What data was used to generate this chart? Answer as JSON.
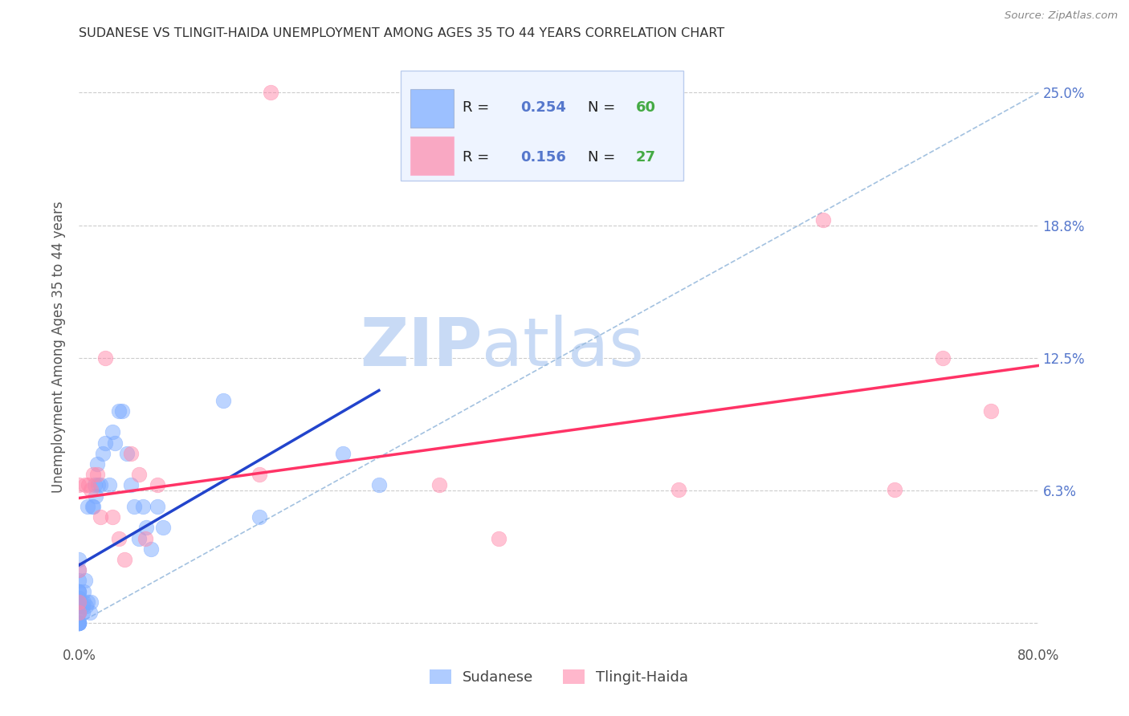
{
  "title": "SUDANESE VS TLINGIT-HAIDA UNEMPLOYMENT AMONG AGES 35 TO 44 YEARS CORRELATION CHART",
  "source": "Source: ZipAtlas.com",
  "ylabel": "Unemployment Among Ages 35 to 44 years",
  "xlim": [
    0.0,
    0.8
  ],
  "ylim": [
    -0.01,
    0.27
  ],
  "sudanese_R": 0.254,
  "sudanese_N": 60,
  "tlingit_R": 0.156,
  "tlingit_N": 27,
  "sudanese_color": "#7aaaff",
  "tlingit_color": "#ff88aa",
  "sudanese_trend_color": "#2244cc",
  "tlingit_trend_color": "#ff3366",
  "diagonal_color": "#99bbdd",
  "grid_color": "#cccccc",
  "background": "#ffffff",
  "title_color": "#333333",
  "axis_label_color": "#555555",
  "right_tick_color": "#5577cc",
  "watermark_color": "#ddeeff",
  "legend_box_color": "#eef4ff",
  "legend_edge_color": "#bbccee",
  "ytick_vals": [
    0.0,
    0.0625,
    0.125,
    0.1875,
    0.25
  ],
  "ytick_labels": [
    "",
    "6.3%",
    "12.5%",
    "18.8%",
    "25.0%"
  ],
  "sudanese_x": [
    0.0,
    0.0,
    0.0,
    0.0,
    0.0,
    0.0,
    0.0,
    0.0,
    0.0,
    0.0,
    0.0,
    0.0,
    0.0,
    0.0,
    0.0,
    0.0,
    0.0,
    0.0,
    0.0,
    0.0,
    0.0,
    0.0,
    0.0,
    0.003,
    0.003,
    0.004,
    0.004,
    0.005,
    0.006,
    0.007,
    0.007,
    0.009,
    0.01,
    0.011,
    0.012,
    0.013,
    0.014,
    0.015,
    0.016,
    0.018,
    0.02,
    0.022,
    0.025,
    0.028,
    0.03,
    0.033,
    0.036,
    0.04,
    0.043,
    0.046,
    0.05,
    0.053,
    0.056,
    0.06,
    0.065,
    0.07,
    0.12,
    0.15,
    0.22,
    0.25
  ],
  "sudanese_y": [
    0.0,
    0.0,
    0.0,
    0.0,
    0.0,
    0.0,
    0.0,
    0.0,
    0.005,
    0.005,
    0.005,
    0.008,
    0.008,
    0.01,
    0.01,
    0.012,
    0.012,
    0.015,
    0.015,
    0.015,
    0.02,
    0.025,
    0.03,
    0.005,
    0.008,
    0.01,
    0.015,
    0.02,
    0.008,
    0.01,
    0.055,
    0.005,
    0.01,
    0.055,
    0.055,
    0.065,
    0.06,
    0.075,
    0.065,
    0.065,
    0.08,
    0.085,
    0.065,
    0.09,
    0.085,
    0.1,
    0.1,
    0.08,
    0.065,
    0.055,
    0.04,
    0.055,
    0.045,
    0.035,
    0.055,
    0.045,
    0.105,
    0.05,
    0.08,
    0.065
  ],
  "tlingit_x": [
    0.0,
    0.0,
    0.0,
    0.0,
    0.005,
    0.008,
    0.01,
    0.012,
    0.015,
    0.018,
    0.022,
    0.028,
    0.033,
    0.038,
    0.043,
    0.05,
    0.055,
    0.065,
    0.15,
    0.16,
    0.3,
    0.35,
    0.5,
    0.62,
    0.68,
    0.72,
    0.76
  ],
  "tlingit_y": [
    0.005,
    0.01,
    0.025,
    0.065,
    0.065,
    0.065,
    0.063,
    0.07,
    0.07,
    0.05,
    0.125,
    0.05,
    0.04,
    0.03,
    0.08,
    0.07,
    0.04,
    0.065,
    0.07,
    0.25,
    0.065,
    0.04,
    0.063,
    0.19,
    0.063,
    0.125,
    0.1
  ]
}
